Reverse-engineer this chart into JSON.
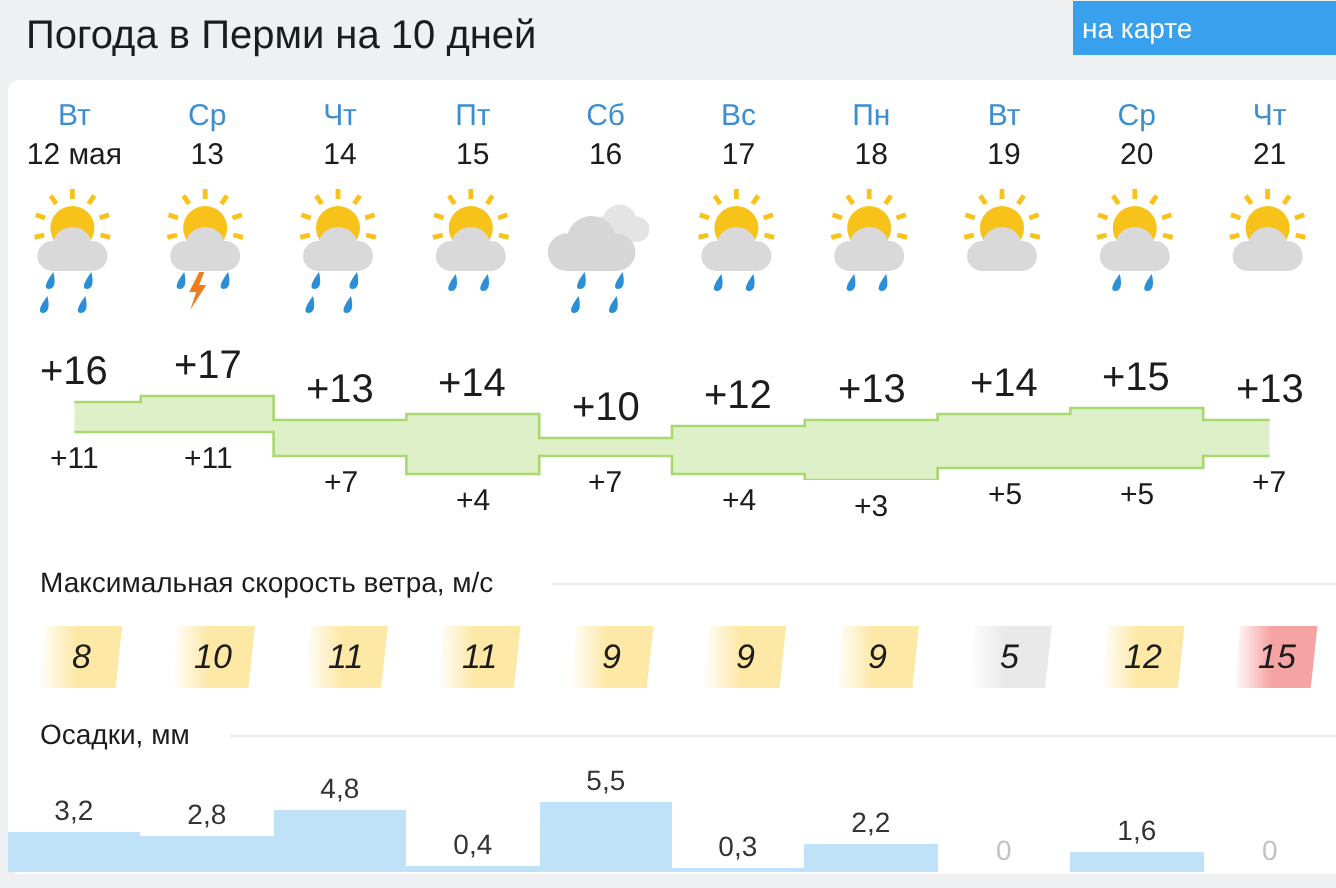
{
  "chart_data": [
    {
      "type": "step",
      "title": "Погода в Перми на 10 дней",
      "categories": [
        "Вт\n12 мая",
        "Ср\n13",
        "Чт\n14",
        "Пт\n15",
        "Сб\n16",
        "Вс\n17",
        "Пн\n18",
        "Вт\n19",
        "Ср\n20",
        "Чт\n21"
      ],
      "tick_labels": "x",
      "annotations": [
        "на карте"
      ],
      "series": [
        {
          "color": "#a8d86e",
          "values": [
            16,
            17,
            13,
            14,
            10,
            12,
            13,
            14,
            15,
            13
          ],
          "value_labels": [
            "+16",
            "+17",
            "+13",
            "+14",
            "+10",
            "+12",
            "+13",
            "+14",
            "+15",
            "+13"
          ],
          "lower": [
            11,
            11,
            7,
            4,
            7,
            4,
            3,
            5,
            5,
            7
          ],
          "upper": [
            16,
            17,
            13,
            14,
            10,
            12,
            13,
            14,
            15,
            13
          ]
        },
        {
          "color": "#a8d86e",
          "values": [
            11,
            11,
            7,
            4,
            7,
            4,
            3,
            5,
            5,
            7
          ],
          "value_labels": [
            "+11",
            "+11",
            "+7",
            "+4",
            "+7",
            "+4",
            "+3",
            "+5",
            "+5",
            "+7"
          ]
        }
      ]
    },
    {
      "type": "other",
      "title": "Максимальная скорость ветра, м/с",
      "values": [
        8,
        10,
        11,
        11,
        9,
        9,
        9,
        5,
        12,
        15
      ],
      "data_labels": true,
      "colors": [
        "#fde8a6",
        "#fde8a6",
        "#fde8a6",
        "#fde8a6",
        "#fde8a6",
        "#fde8a6",
        "#fde8a6",
        "#e9e9e9",
        "#fde8a6",
        "#f6a3a3"
      ]
    },
    {
      "type": "bar",
      "title": "Осадки, мм",
      "categories": [
        null,
        null,
        null,
        null,
        null,
        null,
        null,
        null,
        null,
        null
      ],
      "tick_labels": false,
      "values": [
        3.2,
        2.8,
        4.8,
        0.4,
        5.5,
        0.3,
        2.2,
        0,
        1.6,
        0
      ],
      "value_labels": [
        "3,2",
        "2,8",
        "4,8",
        "0,4",
        "5,5",
        "0,3",
        "2,2",
        "0",
        "1,6",
        "0"
      ],
      "color": "#bfe2f9"
    }
  ]
}
